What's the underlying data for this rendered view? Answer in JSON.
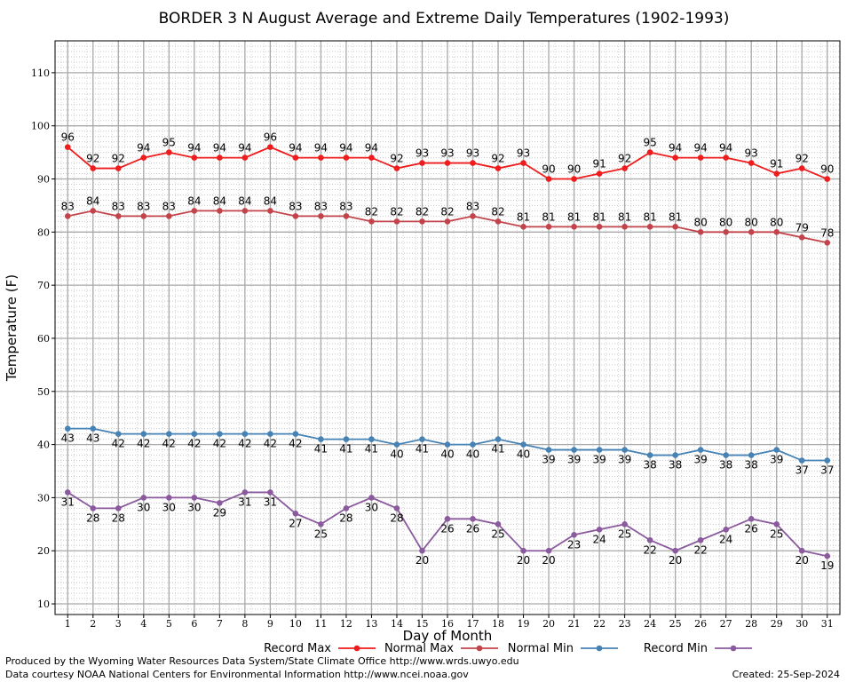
{
  "chart_data": {
    "type": "line",
    "title": "BORDER 3 N August Average and Extreme Daily Temperatures (1902-1993)",
    "xlabel": "Day of Month",
    "ylabel": "Temperature (F)",
    "x": [
      1,
      2,
      3,
      4,
      5,
      6,
      7,
      8,
      9,
      10,
      11,
      12,
      13,
      14,
      15,
      16,
      17,
      18,
      19,
      20,
      21,
      22,
      23,
      24,
      25,
      26,
      27,
      28,
      29,
      30,
      31
    ],
    "ylim": [
      8,
      116
    ],
    "yticks": [
      10,
      20,
      30,
      40,
      50,
      60,
      70,
      80,
      90,
      100,
      110
    ],
    "grid": true,
    "legend_position": "bottom",
    "series": [
      {
        "name": "Record Max",
        "color": "#ee1c1c",
        "label_position": "above",
        "values": [
          96,
          92,
          92,
          94,
          95,
          94,
          94,
          94,
          96,
          94,
          94,
          94,
          94,
          92,
          93,
          93,
          93,
          92,
          93,
          90,
          90,
          91,
          92,
          95,
          94,
          94,
          94,
          93,
          91,
          92,
          90
        ]
      },
      {
        "name": "Normal Max",
        "color": "#c2444a",
        "label_position": "above",
        "values": [
          83,
          84,
          83,
          83,
          83,
          84,
          84,
          84,
          84,
          83,
          83,
          83,
          82,
          82,
          82,
          82,
          83,
          82,
          81,
          81,
          81,
          81,
          81,
          81,
          81,
          80,
          80,
          80,
          80,
          79,
          78
        ]
      },
      {
        "name": "Normal Min",
        "color": "#4682b4",
        "label_position": "below",
        "values": [
          43,
          43,
          42,
          42,
          42,
          42,
          42,
          42,
          42,
          42,
          41,
          41,
          41,
          40,
          41,
          40,
          40,
          41,
          40,
          39,
          39,
          39,
          39,
          38,
          38,
          39,
          38,
          38,
          39,
          37,
          37
        ]
      },
      {
        "name": "Record Min",
        "color": "#8b5a9e",
        "label_position": "below",
        "values": [
          31,
          28,
          28,
          30,
          30,
          30,
          29,
          31,
          31,
          27,
          25,
          28,
          30,
          28,
          20,
          26,
          26,
          25,
          20,
          20,
          23,
          24,
          25,
          22,
          20,
          22,
          24,
          26,
          25,
          20,
          19
        ]
      }
    ]
  },
  "footer": {
    "produced_by": "Produced by the Wyoming Water Resources Data System/State Climate Office http://www.wrds.uwyo.edu",
    "data_courtesy": "Data courtesy NOAA National Centers for Environmental Information http://www.ncei.noaa.gov",
    "created": "Created:  25-Sep-2024"
  }
}
